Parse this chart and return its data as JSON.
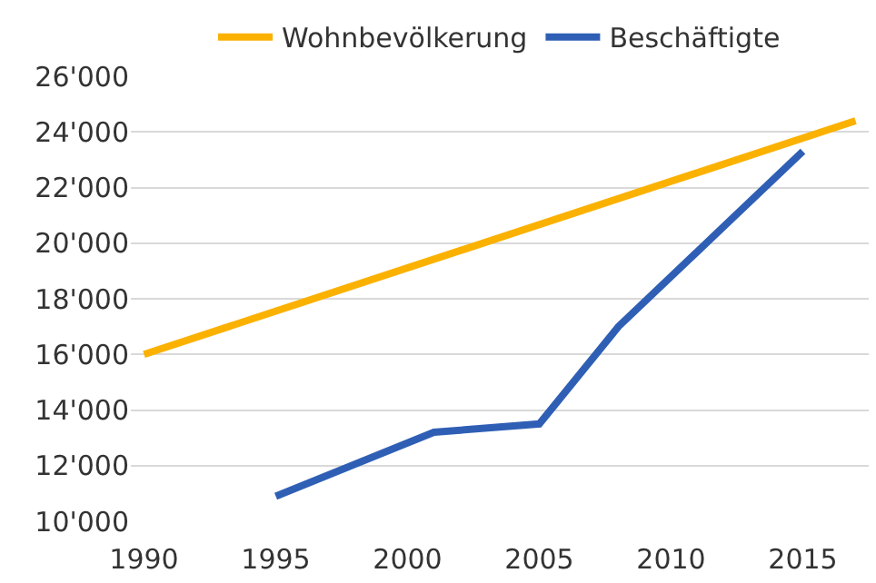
{
  "chart_data": {
    "type": "line",
    "series": [
      {
        "name": "Wohnbevölkerung",
        "color": "#fbb100",
        "x": [
          1990,
          2017
        ],
        "values": [
          16000,
          24400
        ]
      },
      {
        "name": "Beschäftigte",
        "color": "#2f5fb5",
        "x": [
          1995,
          2001,
          2005,
          2008,
          2015
        ],
        "values": [
          10900,
          13200,
          13500,
          17000,
          23300
        ]
      }
    ],
    "xlim": [
      1989.5,
      2017.5
    ],
    "xticks": [
      1990,
      1995,
      2000,
      2005,
      2010,
      2015
    ],
    "ylim": [
      10000,
      26000
    ],
    "yticks": [
      {
        "value": 10000,
        "label": "10'000"
      },
      {
        "value": 12000,
        "label": "12'000"
      },
      {
        "value": 14000,
        "label": "14'000"
      },
      {
        "value": 16000,
        "label": "16'000"
      },
      {
        "value": 18000,
        "label": "18'000"
      },
      {
        "value": 20000,
        "label": "20'000"
      },
      {
        "value": 22000,
        "label": "22'000"
      },
      {
        "value": 24000,
        "label": "24'000"
      },
      {
        "value": 26000,
        "label": "26'000"
      }
    ],
    "grid": "y",
    "legend": "top",
    "marker": "none",
    "line_style": "solid"
  }
}
